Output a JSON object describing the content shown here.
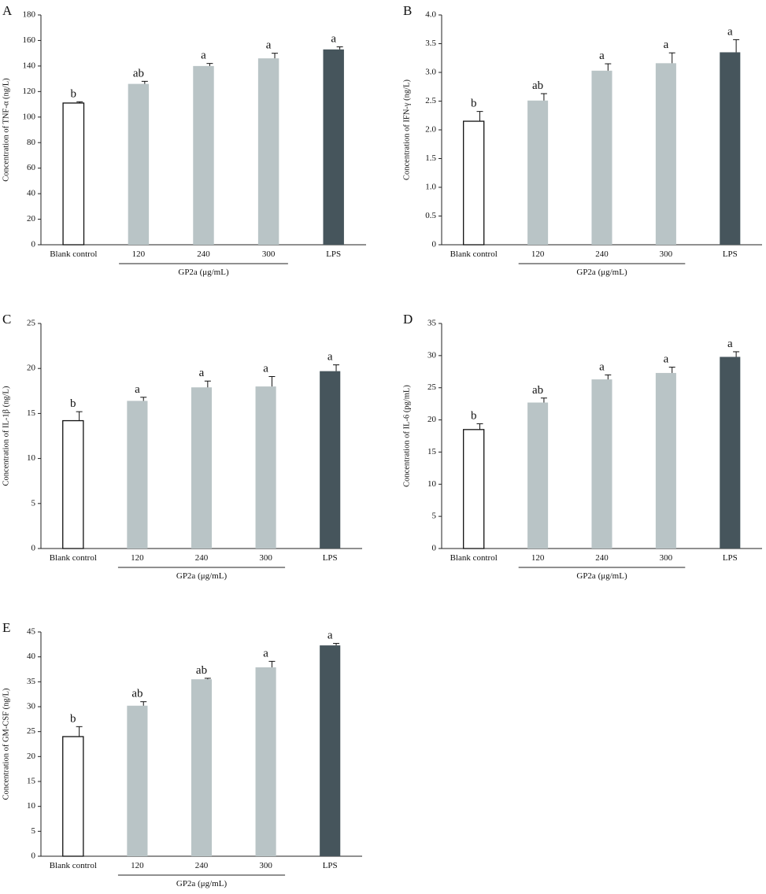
{
  "bar_colors": {
    "Blank control": "#ffffff",
    "120": "#b9c4c6",
    "240": "#b9c4c6",
    "300": "#b9c4c6",
    "LPS": "#46555c"
  },
  "chart_data": [
    {
      "panel": "A",
      "type": "bar",
      "categories": [
        "Blank control",
        "120",
        "240",
        "300",
        "LPS"
      ],
      "group_label": "GP2a (μg/mL)",
      "ylabel": "Concentration of TNF-α (ng/L)",
      "ylim": [
        0,
        180
      ],
      "yticks": [
        0,
        20,
        40,
        60,
        80,
        100,
        120,
        140,
        160,
        180
      ],
      "values": [
        111,
        126,
        140,
        146,
        153
      ],
      "errors": [
        1,
        2,
        2,
        4,
        2
      ],
      "letters": [
        "b",
        "ab",
        "a",
        "a",
        "a"
      ]
    },
    {
      "panel": "B",
      "type": "bar",
      "categories": [
        "Blank control",
        "120",
        "240",
        "300",
        "LPS"
      ],
      "group_label": "GP2a (μg/mL)",
      "ylabel": "Concentration of IFN-γ (ng/L)",
      "ylim": [
        0,
        4.0
      ],
      "yticks": [
        "0",
        "0.5",
        "1.0",
        "1.5",
        "2.0",
        "2.5",
        "3.0",
        "3.5",
        "4.0"
      ],
      "values": [
        2.15,
        2.51,
        3.03,
        3.16,
        3.35
      ],
      "errors": [
        0.17,
        0.12,
        0.12,
        0.18,
        0.22
      ],
      "letters": [
        "b",
        "ab",
        "a",
        "a",
        "a"
      ]
    },
    {
      "panel": "C",
      "type": "bar",
      "categories": [
        "Blank control",
        "120",
        "240",
        "300",
        "LPS"
      ],
      "group_label": "GP2a (μg/mL)",
      "ylabel": "Concentration of IL-1β (ng/L)",
      "ylim": [
        0,
        25
      ],
      "yticks": [
        0,
        5,
        10,
        15,
        20,
        25
      ],
      "values": [
        14.2,
        16.4,
        17.9,
        18.0,
        19.7
      ],
      "errors": [
        1.0,
        0.4,
        0.7,
        1.1,
        0.7
      ],
      "letters": [
        "b",
        "a",
        "a",
        "a",
        "a"
      ]
    },
    {
      "panel": "D",
      "type": "bar",
      "categories": [
        "Blank control",
        "120",
        "240",
        "300",
        "LPS"
      ],
      "group_label": "GP2a (μg/mL)",
      "ylabel": "Concentration of IL-6 (pg/mL)",
      "ylim": [
        0,
        35
      ],
      "yticks": [
        0,
        5,
        10,
        15,
        20,
        25,
        30,
        35
      ],
      "values": [
        18.5,
        22.7,
        26.3,
        27.3,
        29.8
      ],
      "errors": [
        0.9,
        0.7,
        0.7,
        0.9,
        0.8
      ],
      "letters": [
        "b",
        "ab",
        "a",
        "a",
        "a"
      ]
    },
    {
      "panel": "E",
      "type": "bar",
      "categories": [
        "Blank control",
        "120",
        "240",
        "300",
        "LPS"
      ],
      "group_label": "GP2a (μg/mL)",
      "ylabel": "Concentration of GM-CSF (ng/L)",
      "ylim": [
        0,
        45
      ],
      "yticks": [
        0,
        5,
        10,
        15,
        20,
        25,
        30,
        35,
        40,
        45
      ],
      "values": [
        24.0,
        30.2,
        35.5,
        37.9,
        42.3
      ],
      "errors": [
        2.0,
        0.8,
        0.2,
        1.2,
        0.4
      ],
      "letters": [
        "b",
        "ab",
        "ab",
        "a",
        "a"
      ]
    }
  ]
}
